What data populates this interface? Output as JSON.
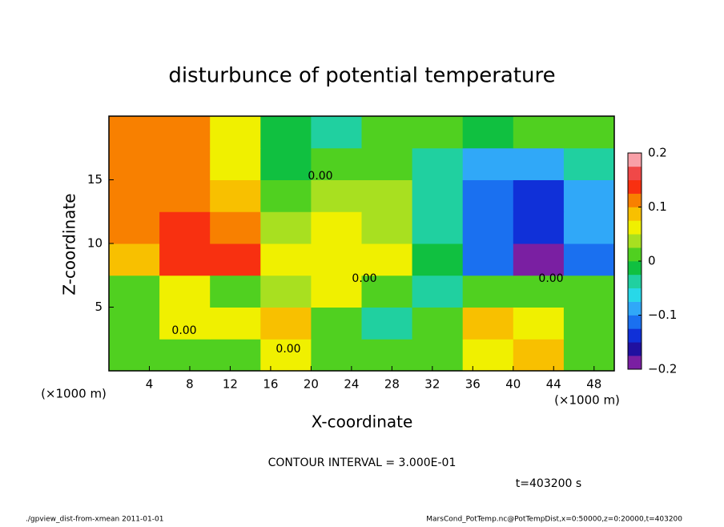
{
  "chart_data": {
    "type": "heatmap",
    "title": "disturbunce of potential temperature",
    "x_label": "X-coordinate",
    "y_label": "Z-coordinate",
    "x_unit_left": "(×1000 m)",
    "x_unit_right": "(×1000 m)",
    "contour_interval": "CONTOUR INTERVAL = 3.000E-01",
    "time_label": "t=403200 s",
    "footer_left": "./gpview_dist-from-xmean  2011-01-01",
    "footer_right": "MarsCond_PotTemp.nc@PotTempDist,x=0:50000,z=0:20000,t=403200",
    "contour_labels": [
      "0.00",
      "0.00",
      "0.00",
      "0.00",
      "0.00"
    ],
    "xlim": [
      0,
      50
    ],
    "ylim": [
      0,
      20
    ],
    "xticks": [
      4,
      8,
      12,
      16,
      20,
      24,
      28,
      32,
      36,
      40,
      44,
      48
    ],
    "yticks": [
      5,
      10,
      15
    ],
    "x_edges": [
      0,
      5,
      10,
      15,
      20,
      25,
      30,
      35,
      40,
      45,
      50
    ],
    "y_edges": [
      0,
      2.5,
      5,
      7.5,
      10,
      12.5,
      15,
      17.5,
      20
    ],
    "z": [
      [
        0.0,
        0.02,
        0.0,
        0.05,
        0.0,
        0.0,
        0.0,
        0.05,
        0.08,
        0.0
      ],
      [
        0.0,
        0.05,
        0.05,
        0.08,
        0.0,
        -0.05,
        0.02,
        0.08,
        0.05,
        0.0
      ],
      [
        0.0,
        0.05,
        0.0,
        0.03,
        0.05,
        0.0,
        -0.05,
        0.02,
        0.0,
        0.0
      ],
      [
        0.08,
        0.15,
        0.14,
        0.06,
        0.07,
        0.05,
        -0.02,
        -0.12,
        -0.18,
        -0.12
      ],
      [
        0.1,
        0.14,
        0.1,
        0.03,
        0.05,
        0.04,
        -0.04,
        -0.12,
        -0.15,
        -0.1
      ],
      [
        0.12,
        0.12,
        0.08,
        0.0,
        0.03,
        0.03,
        -0.05,
        -0.12,
        -0.14,
        -0.08
      ],
      [
        0.12,
        0.1,
        0.06,
        -0.02,
        0.0,
        0.02,
        -0.04,
        -0.1,
        -0.08,
        -0.05
      ],
      [
        0.12,
        0.1,
        0.05,
        -0.02,
        -0.03,
        0.0,
        0.02,
        -0.02,
        0.0,
        0.02
      ]
    ],
    "zlim": [
      -0.2,
      0.2
    ],
    "zticks": [
      {
        "value": -0.2,
        "label": "−0.2"
      },
      {
        "value": -0.1,
        "label": "−0.1"
      },
      0,
      0.1,
      0.2
    ],
    "colorscale": [
      "#7a1fa2",
      "#2010a0",
      "#1030d8",
      "#1a70f0",
      "#30a8f8",
      "#28d8e8",
      "#20d0a0",
      "#10c040",
      "#50d020",
      "#a8e020",
      "#f0f000",
      "#f8c000",
      "#f88000",
      "#f83010",
      "#f04848",
      "#f8a0a8"
    ]
  }
}
